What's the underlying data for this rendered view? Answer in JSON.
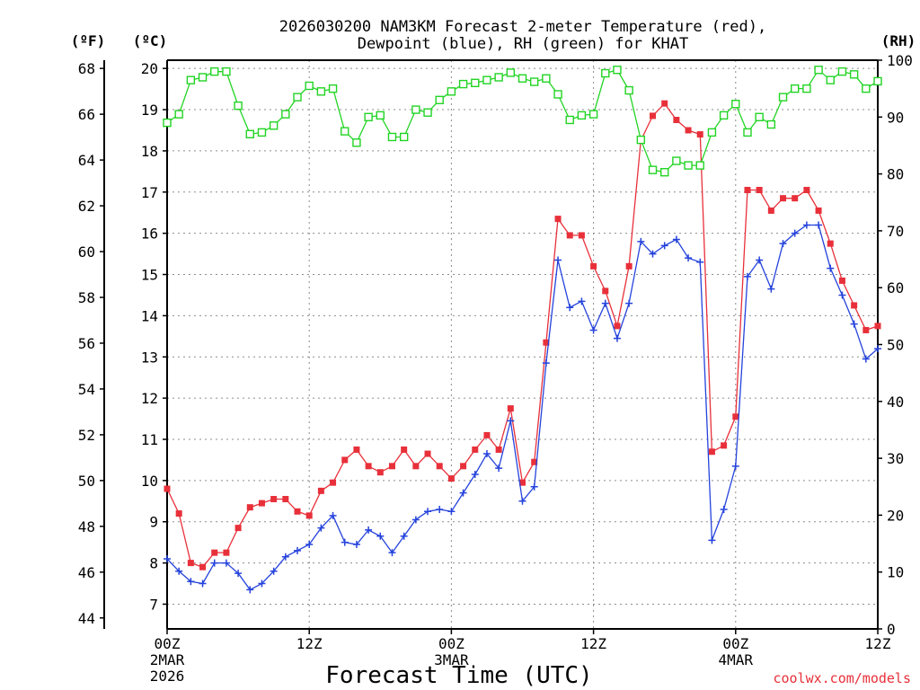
{
  "chart_data": {
    "type": "line",
    "title_line1": "2026030200 NAM3KM Forecast 2-meter Temperature (red),",
    "title_line2": "Dewpoint (blue), RH (green) for KHAT",
    "xlabel": "Forecast Time (UTC)",
    "credit": "coolwx.com/models",
    "left_outer_unit": "(ºF)",
    "left_inner_unit": "(ºC)",
    "right_unit": "(RH)",
    "x_range_hours": [
      0,
      60
    ],
    "celsius_range": [
      6.4,
      20.2
    ],
    "fahrenheit_ticks": [
      44,
      46,
      48,
      50,
      52,
      54,
      56,
      58,
      60,
      62,
      64,
      66,
      68
    ],
    "celsius_ticks": [
      7,
      8,
      9,
      10,
      11,
      12,
      13,
      14,
      15,
      16,
      17,
      18,
      19,
      20
    ],
    "rh_range": [
      0,
      100
    ],
    "rh_ticks": [
      0,
      10,
      20,
      30,
      40,
      50,
      60,
      70,
      80,
      90,
      100
    ],
    "x_ticks": [
      {
        "hour": 0,
        "label": "00Z",
        "sub1": "2MAR",
        "sub2": "2026"
      },
      {
        "hour": 12,
        "label": "12Z",
        "sub1": "",
        "sub2": ""
      },
      {
        "hour": 24,
        "label": "00Z",
        "sub1": "3MAR",
        "sub2": ""
      },
      {
        "hour": 36,
        "label": "12Z",
        "sub1": "",
        "sub2": ""
      },
      {
        "hour": 48,
        "label": "00Z",
        "sub1": "4MAR",
        "sub2": ""
      },
      {
        "hour": 60,
        "label": "12Z",
        "sub1": "",
        "sub2": ""
      }
    ],
    "series": [
      {
        "name": "2-meter Temperature",
        "color": "#e8303a",
        "marker": "filled-square",
        "axis": "celsius",
        "values": [
          9.8,
          9.2,
          8.0,
          7.9,
          8.25,
          8.25,
          8.85,
          9.35,
          9.45,
          9.55,
          9.55,
          9.25,
          9.15,
          9.75,
          9.95,
          10.5,
          10.75,
          10.35,
          10.2,
          10.35,
          10.75,
          10.35,
          10.65,
          10.35,
          10.05,
          10.35,
          10.75,
          11.1,
          10.75,
          11.75,
          9.95,
          10.45,
          13.35,
          16.35,
          15.95,
          15.95,
          15.2,
          14.6,
          13.75,
          15.2,
          18.25,
          18.85,
          19.15,
          18.75,
          18.5,
          18.4,
          10.7,
          10.85,
          11.55,
          17.05,
          17.05,
          16.55,
          16.85,
          16.85,
          17.05,
          16.55,
          15.75,
          14.85,
          14.25,
          13.65,
          13.75
        ]
      },
      {
        "name": "Dewpoint",
        "color": "#2543dc",
        "marker": "plus",
        "axis": "celsius",
        "values": [
          8.1,
          7.8,
          7.55,
          7.5,
          8.0,
          8.0,
          7.75,
          7.35,
          7.5,
          7.8,
          8.15,
          8.3,
          8.45,
          8.85,
          9.15,
          8.5,
          8.45,
          8.8,
          8.65,
          8.25,
          8.65,
          9.05,
          9.25,
          9.3,
          9.25,
          9.7,
          10.15,
          10.65,
          10.3,
          11.45,
          9.5,
          9.85,
          12.85,
          15.35,
          14.2,
          14.35,
          13.65,
          14.3,
          13.45,
          14.3,
          15.8,
          15.5,
          15.7,
          15.85,
          15.4,
          15.3,
          8.55,
          9.3,
          10.35,
          14.95,
          15.35,
          14.65,
          15.75,
          16.0,
          16.2,
          16.2,
          15.15,
          14.5,
          13.8,
          12.95,
          13.2
        ]
      },
      {
        "name": "RH",
        "color": "#22d424",
        "marker": "open-square",
        "axis": "rh",
        "values": [
          89,
          90.5,
          96.5,
          97,
          98,
          98,
          92,
          87,
          87.3,
          88.5,
          90.5,
          93.5,
          95.5,
          94.5,
          95,
          87.5,
          85.5,
          90,
          90.3,
          86.5,
          86.5,
          91.3,
          90.8,
          93,
          94.5,
          95.8,
          96,
          96.5,
          97,
          97.8,
          96.8,
          96.2,
          96.8,
          94,
          89.5,
          90.3,
          90.5,
          97.7,
          98.3,
          94.7,
          86,
          80.7,
          80.3,
          82.3,
          81.5,
          81.5,
          87.3,
          90.3,
          92.3,
          87.3,
          90,
          88.7,
          93.5,
          95,
          95,
          98.3,
          96.5,
          98,
          97.5,
          95,
          96.3
        ]
      }
    ]
  }
}
